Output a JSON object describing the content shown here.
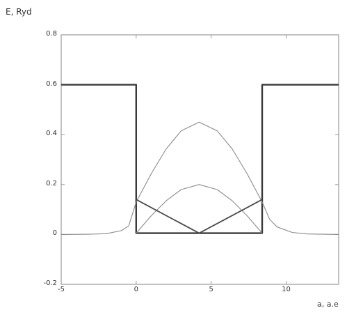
{
  "chart_data": {
    "type": "line",
    "title": "",
    "ylabel": "E, Ryd",
    "xlabel": "a, a.e",
    "xlim": [
      -5,
      13.5
    ],
    "ylim": [
      -0.2,
      0.8
    ],
    "xticks": [
      {
        "value": -5,
        "label": "-5"
      },
      {
        "value": 0,
        "label": "0"
      },
      {
        "value": 5,
        "label": "5"
      },
      {
        "value": 10,
        "label": "10"
      }
    ],
    "yticks": [
      {
        "value": -0.2,
        "label": "-0.2"
      },
      {
        "value": 0,
        "label": "0"
      },
      {
        "value": 0.2,
        "label": "0.2"
      },
      {
        "value": 0.4,
        "label": "0.4"
      },
      {
        "value": 0.6,
        "label": "0.6"
      },
      {
        "value": 0.8,
        "label": "0.8"
      }
    ],
    "grid": false,
    "series": [
      {
        "style": "thick",
        "x": [
          -5,
          0,
          0,
          8.4,
          8.4,
          13.5
        ],
        "y": [
          0.6,
          0.6,
          0.005,
          0.005,
          0.6,
          0.6
        ]
      },
      {
        "style": "thin",
        "x": [
          -5,
          -3,
          -2,
          -1,
          -0.5,
          0,
          1,
          2,
          3,
          4.2,
          5.4,
          6.4,
          7.4,
          8.4,
          8.9,
          9.4,
          10.4,
          11.4,
          13.5
        ],
        "y": [
          0,
          0.001,
          0.003,
          0.015,
          0.034,
          0.13,
          0.243,
          0.343,
          0.415,
          0.45,
          0.415,
          0.343,
          0.243,
          0.13,
          0.06,
          0.03,
          0.008,
          0.002,
          0
        ]
      },
      {
        "style": "thin",
        "x": [
          0,
          1,
          2,
          3,
          4.2,
          5.4,
          6.4,
          7.4,
          8.4
        ],
        "y": [
          0.005,
          0.075,
          0.135,
          0.18,
          0.2,
          0.18,
          0.135,
          0.075,
          0.005
        ]
      },
      {
        "style": "medium",
        "x": [
          0,
          4.2,
          8.4
        ],
        "y": [
          0.14,
          0.005,
          0.14
        ]
      }
    ]
  }
}
